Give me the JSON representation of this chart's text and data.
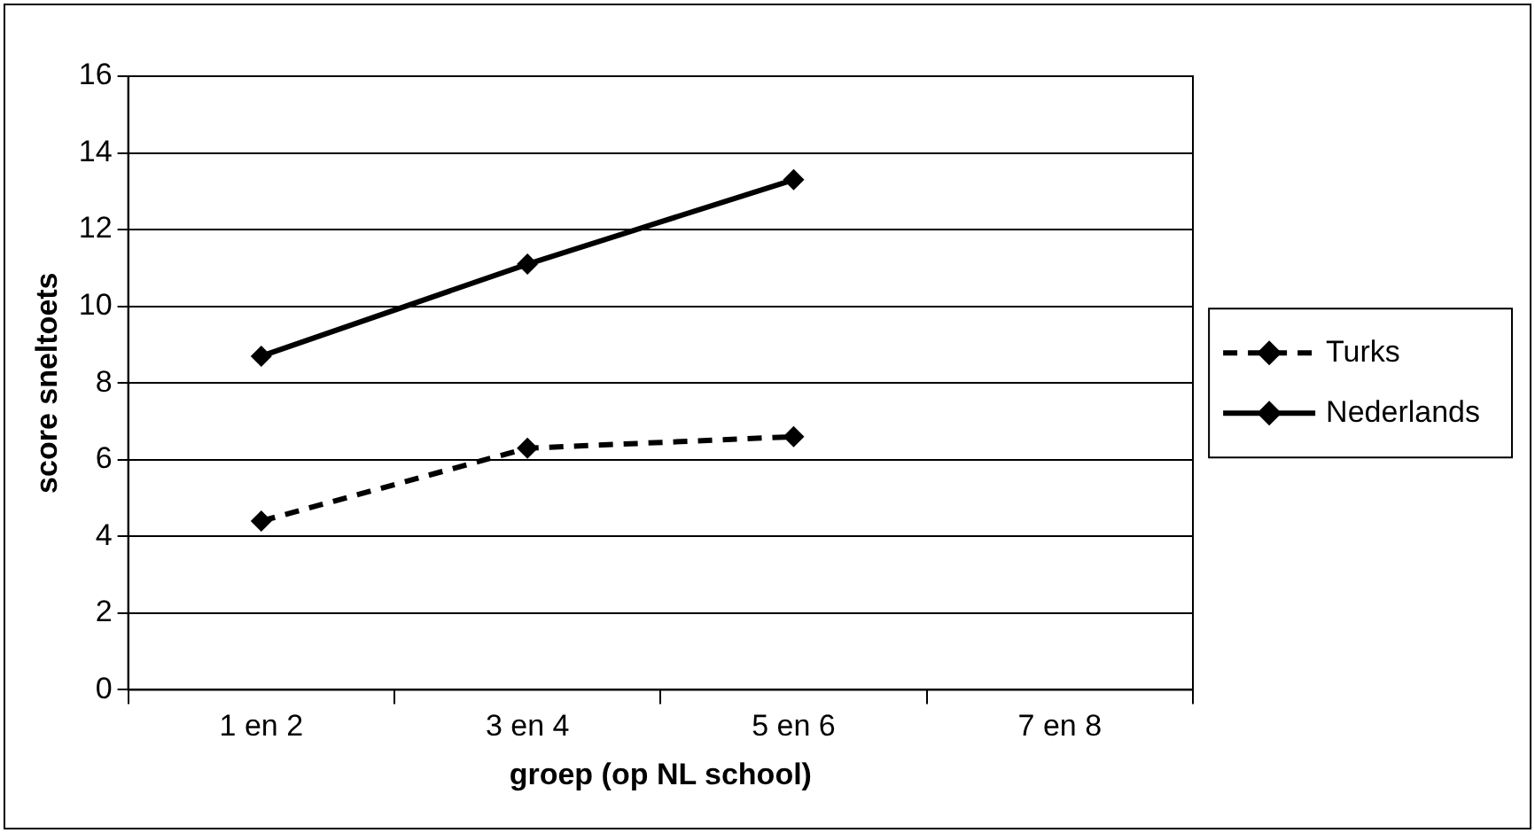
{
  "chart_data": {
    "type": "line",
    "xlabel": "groep (op NL school)",
    "ylabel": "score sneltoets",
    "categories": [
      "1 en 2",
      "3 en 4",
      "5 en 6",
      "7 en 8"
    ],
    "series": [
      {
        "name": "Turks",
        "color": "#000000",
        "values": [
          4.4,
          6.3,
          6.6,
          null
        ],
        "line_style": "dashed"
      },
      {
        "name": "Nederlands",
        "color": "#000000",
        "values": [
          8.7,
          11.1,
          13.3,
          null
        ],
        "line_style": "solid"
      }
    ],
    "ylim": [
      0,
      16
    ],
    "yticks": [
      0,
      2,
      4,
      6,
      8,
      10,
      12,
      14,
      16
    ],
    "grid": "y",
    "legend": "right",
    "marker": "diamond"
  }
}
